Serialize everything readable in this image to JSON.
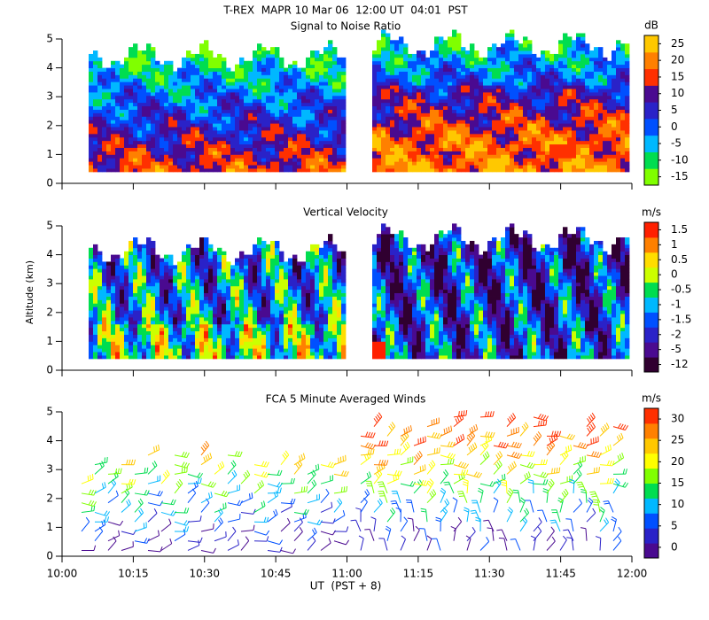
{
  "title": "T-REX  MAPR 10 Mar 06  12:00 UT  04:01  PST",
  "x_label": "UT  (PST + 8)",
  "y_label": "Altitude (km)",
  "xlim": [
    10,
    12
  ],
  "xticks": [
    {
      "value": 10,
      "label": "10:00"
    },
    {
      "value": 10.25,
      "label": "10:15"
    },
    {
      "value": 10.5,
      "label": "10:30"
    },
    {
      "value": 10.75,
      "label": "10:45"
    },
    {
      "value": 11,
      "label": "11:00"
    },
    {
      "value": 11.25,
      "label": "11:15"
    },
    {
      "value": 11.5,
      "label": "11:30"
    },
    {
      "value": 11.75,
      "label": "11:45"
    },
    {
      "value": 12,
      "label": "12:00"
    }
  ],
  "chart_data": [
    {
      "type": "heatmap",
      "title": "Signal to Noise Ratio",
      "ylim": [
        0,
        5
      ],
      "yticks": [
        0,
        1,
        2,
        3,
        4,
        5
      ],
      "colorbar": {
        "unit": "dB",
        "ticks": [
          -15,
          -10,
          -5,
          0,
          5,
          10,
          15,
          20,
          25
        ],
        "colors": [
          "#80ff00",
          "#00dd50",
          "#00b8ff",
          "#0050ff",
          "#2a22c8",
          "#4a0a90",
          "#ff3000",
          "#ff8000",
          "#ffc800"
        ]
      }
    },
    {
      "type": "heatmap",
      "title": "Vertical Velocity",
      "ylim": [
        0,
        5
      ],
      "yticks": [
        0,
        1,
        2,
        3,
        4,
        5
      ],
      "colorbar": {
        "unit": "m/s",
        "ticks": [
          -12,
          -5,
          -2,
          -1.5,
          -1,
          -0.5,
          0,
          0.5,
          1,
          1.5
        ],
        "colors": [
          "#300030",
          "#4a0a90",
          "#2a22c8",
          "#0050ff",
          "#00b8ff",
          "#00dd50",
          "#ccff00",
          "#ffdd00",
          "#ff8000",
          "#ff2000"
        ]
      }
    },
    {
      "type": "barbs",
      "title": "FCA 5 Minute Averaged Winds",
      "ylim": [
        0,
        5
      ],
      "yticks": [
        0,
        1,
        2,
        3,
        4,
        5
      ],
      "colorbar": {
        "unit": "m/s",
        "ticks": [
          0,
          5,
          10,
          15,
          20,
          25,
          30
        ],
        "colors": [
          "#4a0a90",
          "#2a22c8",
          "#0050ff",
          "#00b8ff",
          "#00dd50",
          "#80ff00",
          "#ffff00",
          "#ffc800",
          "#ff8000",
          "#ff3000"
        ]
      }
    }
  ]
}
